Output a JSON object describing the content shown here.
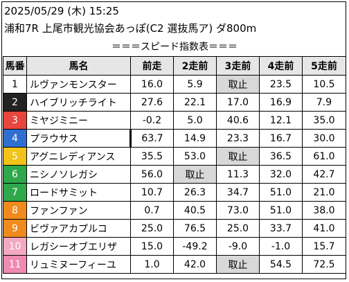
{
  "header": {
    "line1": "2025/05/29 (木) 15:25",
    "line2": "浦和7R 上尾市観光協会あっぽ(C2 選抜馬ア) ダ800m"
  },
  "banner": "＝＝＝スピード指数表＝＝＝",
  "columns": [
    "馬番",
    "馬名",
    "前走",
    "2走前",
    "3走前",
    "4走前",
    "5走前"
  ],
  "colors": {
    "1": "#ffffff",
    "2": "#222222",
    "3": "#e8453c",
    "4": "#2f6fd1",
    "5": "#f2c318",
    "6": "#2ea84b",
    "7": "#f08a1d",
    "8": "#f5a24a",
    "9": "#e68a2e",
    "10": "#f3a9c0",
    "11": "#f08ab0"
  },
  "rows": [
    {
      "no": "1",
      "name": "ルヴァンモンスター",
      "v": [
        "16.0",
        "5.9",
        "取止",
        "23.5",
        "10.5"
      ],
      "bg": "#ffffff",
      "fg": "#000000"
    },
    {
      "no": "2",
      "name": "ハイブリッチライト",
      "v": [
        "27.6",
        "22.1",
        "17.0",
        "16.9",
        "7.9"
      ],
      "bg": "#222222",
      "fg": "#ffffff"
    },
    {
      "no": "3",
      "name": "ミヤジミニー",
      "v": [
        "-0.2",
        "5.0",
        "40.6",
        "12.1",
        "35.0"
      ],
      "bg": "#e8453c",
      "fg": "#ffffff"
    },
    {
      "no": "4",
      "name": "プラウサス",
      "v": [
        "63.7",
        "14.9",
        "23.3",
        "16.7",
        "30.0"
      ],
      "bg": "#2f6fd1",
      "fg": "#ffffff"
    },
    {
      "no": "5",
      "name": "アグニレディアンス",
      "v": [
        "35.5",
        "53.0",
        "取止",
        "36.5",
        "61.0"
      ],
      "bg": "#f2c318",
      "fg": "#ffffff"
    },
    {
      "no": "6",
      "name": "ニシノソレガシ",
      "v": [
        "56.0",
        "取止",
        "11.3",
        "32.0",
        "42.7"
      ],
      "bg": "#2ea84b",
      "fg": "#ffffff"
    },
    {
      "no": "7",
      "name": "ロードサミット",
      "v": [
        "10.7",
        "26.3",
        "34.7",
        "51.0",
        "21.0"
      ],
      "bg": "#2ea84b",
      "fg": "#ffffff"
    },
    {
      "no": "8",
      "name": "ファンファン",
      "v": [
        "0.7",
        "40.5",
        "73.0",
        "51.0",
        "38.0"
      ],
      "bg": "#f08a1d",
      "fg": "#ffffff"
    },
    {
      "no": "9",
      "name": "ビヴァアカプルコ",
      "v": [
        "25.0",
        "76.5",
        "25.0",
        "33.7",
        "41.0"
      ],
      "bg": "#f08a1d",
      "fg": "#ffffff"
    },
    {
      "no": "10",
      "name": "レガシーオブエリザ",
      "v": [
        "15.0",
        "-49.2",
        "-9.0",
        "-1.0",
        "15.7"
      ],
      "bg": "#f3a9c0",
      "fg": "#ffffff"
    },
    {
      "no": "11",
      "name": "リュミヌーフィーユ",
      "v": [
        "1.0",
        "42.0",
        "取止",
        "54.5",
        "72.5"
      ],
      "bg": "#f08ab0",
      "fg": "#ffffff"
    }
  ]
}
